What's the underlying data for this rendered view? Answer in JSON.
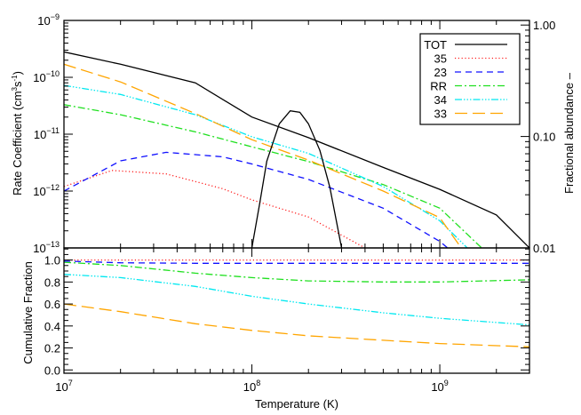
{
  "chart_data": [
    {
      "panel": "top",
      "type": "line",
      "xlabel": "",
      "ylabel": "Rate Coefficient (cm3s-1)",
      "ylabel_parts": [
        "Rate Coefficient (cm",
        "3",
        "s",
        "-1",
        ")"
      ],
      "y2label": "Fractional abundance –",
      "xscale": "log",
      "yscale": "log",
      "y2scale": "log",
      "xlim": [
        10000000.0,
        3000000000.0
      ],
      "ylim": [
        1e-13,
        1e-09
      ],
      "y2lim": [
        0.01,
        1.1
      ],
      "x_ticks": [
        10000000.0,
        100000000.0,
        1000000000.0
      ],
      "y_ticks": [
        {
          "value": 1e-09,
          "base": "10",
          "exp": "−9"
        },
        {
          "value": 1e-10,
          "base": "10",
          "exp": "−10"
        },
        {
          "value": 1e-11,
          "base": "10",
          "exp": "−11"
        },
        {
          "value": 1e-12,
          "base": "10",
          "exp": "−12"
        },
        {
          "value": 1e-13,
          "base": "10",
          "exp": "−13"
        }
      ],
      "y2_ticks": [
        {
          "value": 1.0,
          "label": "1.00"
        },
        {
          "value": 0.1,
          "label": "0.10"
        },
        {
          "value": 0.01,
          "label": "0.01"
        }
      ],
      "grid": false,
      "legend": {
        "placement": "top-right",
        "entries": [
          "TOT",
          "35",
          "23",
          "RR",
          "34",
          "33"
        ]
      },
      "series": [
        {
          "name": "TOT",
          "color": "#000000",
          "dash": "",
          "x": [
            10000000.0,
            20000000.0,
            50000000.0,
            100000000.0,
            200000000.0,
            500000000.0,
            1000000000.0,
            2000000000.0,
            3000000000.0
          ],
          "y": [
            2.8e-10,
            1.7e-10,
            8e-11,
            2e-11,
            8.7e-12,
            2.6e-12,
            1.07e-12,
            3.8e-13,
            1e-13
          ]
        },
        {
          "name": "35",
          "color": "#ff2020",
          "dash": "1.2,2.6",
          "x": [
            10000000.0,
            18000000.0,
            35000000.0,
            70000000.0,
            100000000.0,
            200000000.0,
            400000000.0
          ],
          "y": [
            1.2e-12,
            2.3e-12,
            2e-12,
            1.1e-12,
            7e-13,
            3.5e-13,
            1e-13
          ]
        },
        {
          "name": "23",
          "color": "#1010ff",
          "dash": "7,5",
          "x": [
            10000000.0,
            20000000.0,
            35000000.0,
            70000000.0,
            100000000.0,
            200000000.0,
            500000000.0,
            1000000000.0,
            1100000000.0
          ],
          "y": [
            1e-12,
            3.4e-12,
            4.8e-12,
            4e-12,
            3e-12,
            1.6e-12,
            5e-13,
            1.3e-13,
            1e-13
          ]
        },
        {
          "name": "RR",
          "color": "#20e020",
          "dash": "8,3,2,3",
          "x": [
            10000000.0,
            20000000.0,
            50000000.0,
            100000000.0,
            200000000.0,
            500000000.0,
            1000000000.0,
            1670000000.0
          ],
          "y": [
            3.3e-11,
            2.2e-11,
            1.1e-11,
            6e-12,
            3.3e-12,
            1.3e-12,
            5e-13,
            1e-13
          ]
        },
        {
          "name": "34",
          "color": "#00e8f0",
          "dash": "8,2,1.5,2,1.5,2,1.5,2",
          "x": [
            10000000.0,
            20000000.0,
            50000000.0,
            100000000.0,
            200000000.0,
            500000000.0,
            1000000000.0,
            1400000000.0
          ],
          "y": [
            7.2e-11,
            5e-11,
            2.2e-11,
            9e-12,
            4.6e-12,
            1.2e-12,
            3e-13,
            1e-13
          ]
        },
        {
          "name": "33",
          "color": "#ffa500",
          "dash": "14,6",
          "x": [
            10000000.0,
            20000000.0,
            50000000.0,
            100000000.0,
            200000000.0,
            500000000.0,
            1000000000.0,
            1300000000.0
          ],
          "y": [
            1.7e-10,
            8.3e-11,
            2.3e-11,
            8e-12,
            3.5e-12,
            1e-12,
            3.4e-13,
            1e-13
          ]
        }
      ],
      "fractional_abundance": {
        "axis": "right",
        "color": "#000000",
        "x": [
          100000000.0,
          110000000.0,
          120000000.0,
          140000000.0,
          160000000.0,
          180000000.0,
          200000000.0,
          230000000.0,
          260000000.0,
          300000000.0
        ],
        "y": [
          0.01,
          0.025,
          0.06,
          0.13,
          0.17,
          0.165,
          0.13,
          0.075,
          0.035,
          0.01
        ]
      }
    },
    {
      "panel": "bottom",
      "type": "line",
      "xlabel": "Temperature (K)",
      "ylabel": "Cumulative Fraction",
      "xscale": "log",
      "yscale": "linear",
      "xlim": [
        10000000.0,
        3000000000.0
      ],
      "ylim": [
        -0.03,
        1.11
      ],
      "x_ticks": [
        {
          "value": 10000000.0,
          "base": "10",
          "exp": "7"
        },
        {
          "value": 100000000.0,
          "base": "10",
          "exp": "8"
        },
        {
          "value": 1000000000.0,
          "base": "10",
          "exp": "9"
        }
      ],
      "y_ticks": [
        {
          "value": 0.0,
          "label": "0.0"
        },
        {
          "value": 0.2,
          "label": "0.2"
        },
        {
          "value": 0.4,
          "label": "0.4"
        },
        {
          "value": 0.6,
          "label": "0.6"
        },
        {
          "value": 0.8,
          "label": "0.8"
        },
        {
          "value": 1.0,
          "label": "1.0"
        }
      ],
      "grid": false,
      "series": [
        {
          "name": "35",
          "color": "#ff2020",
          "dash": "1.2,2.6",
          "x": [
            10000000.0,
            3000000000.0
          ],
          "y": [
            1.0,
            1.0
          ]
        },
        {
          "name": "23",
          "color": "#1010ff",
          "dash": "7,5",
          "x": [
            10000000.0,
            20000000.0,
            50000000.0,
            100000000.0,
            1000000000.0,
            3000000000.0
          ],
          "y": [
            0.99,
            0.975,
            0.97,
            0.97,
            0.97,
            0.97
          ]
        },
        {
          "name": "RR",
          "color": "#20e020",
          "dash": "8,3,2,3",
          "x": [
            10000000.0,
            20000000.0,
            50000000.0,
            100000000.0,
            200000000.0,
            500000000.0,
            1000000000.0,
            3000000000.0
          ],
          "y": [
            0.98,
            0.95,
            0.88,
            0.84,
            0.81,
            0.8,
            0.8,
            0.82
          ]
        },
        {
          "name": "34",
          "color": "#00e8f0",
          "dash": "8,2,1.5,2,1.5,2,1.5,2",
          "x": [
            10000000.0,
            20000000.0,
            50000000.0,
            100000000.0,
            200000000.0,
            500000000.0,
            1000000000.0,
            3000000000.0
          ],
          "y": [
            0.87,
            0.84,
            0.76,
            0.67,
            0.6,
            0.52,
            0.47,
            0.41
          ]
        },
        {
          "name": "33",
          "color": "#ffa500",
          "dash": "14,6",
          "x": [
            10000000.0,
            20000000.0,
            50000000.0,
            100000000.0,
            200000000.0,
            500000000.0,
            1000000000.0,
            3000000000.0
          ],
          "y": [
            0.6,
            0.53,
            0.42,
            0.36,
            0.31,
            0.27,
            0.24,
            0.21
          ]
        }
      ]
    }
  ]
}
